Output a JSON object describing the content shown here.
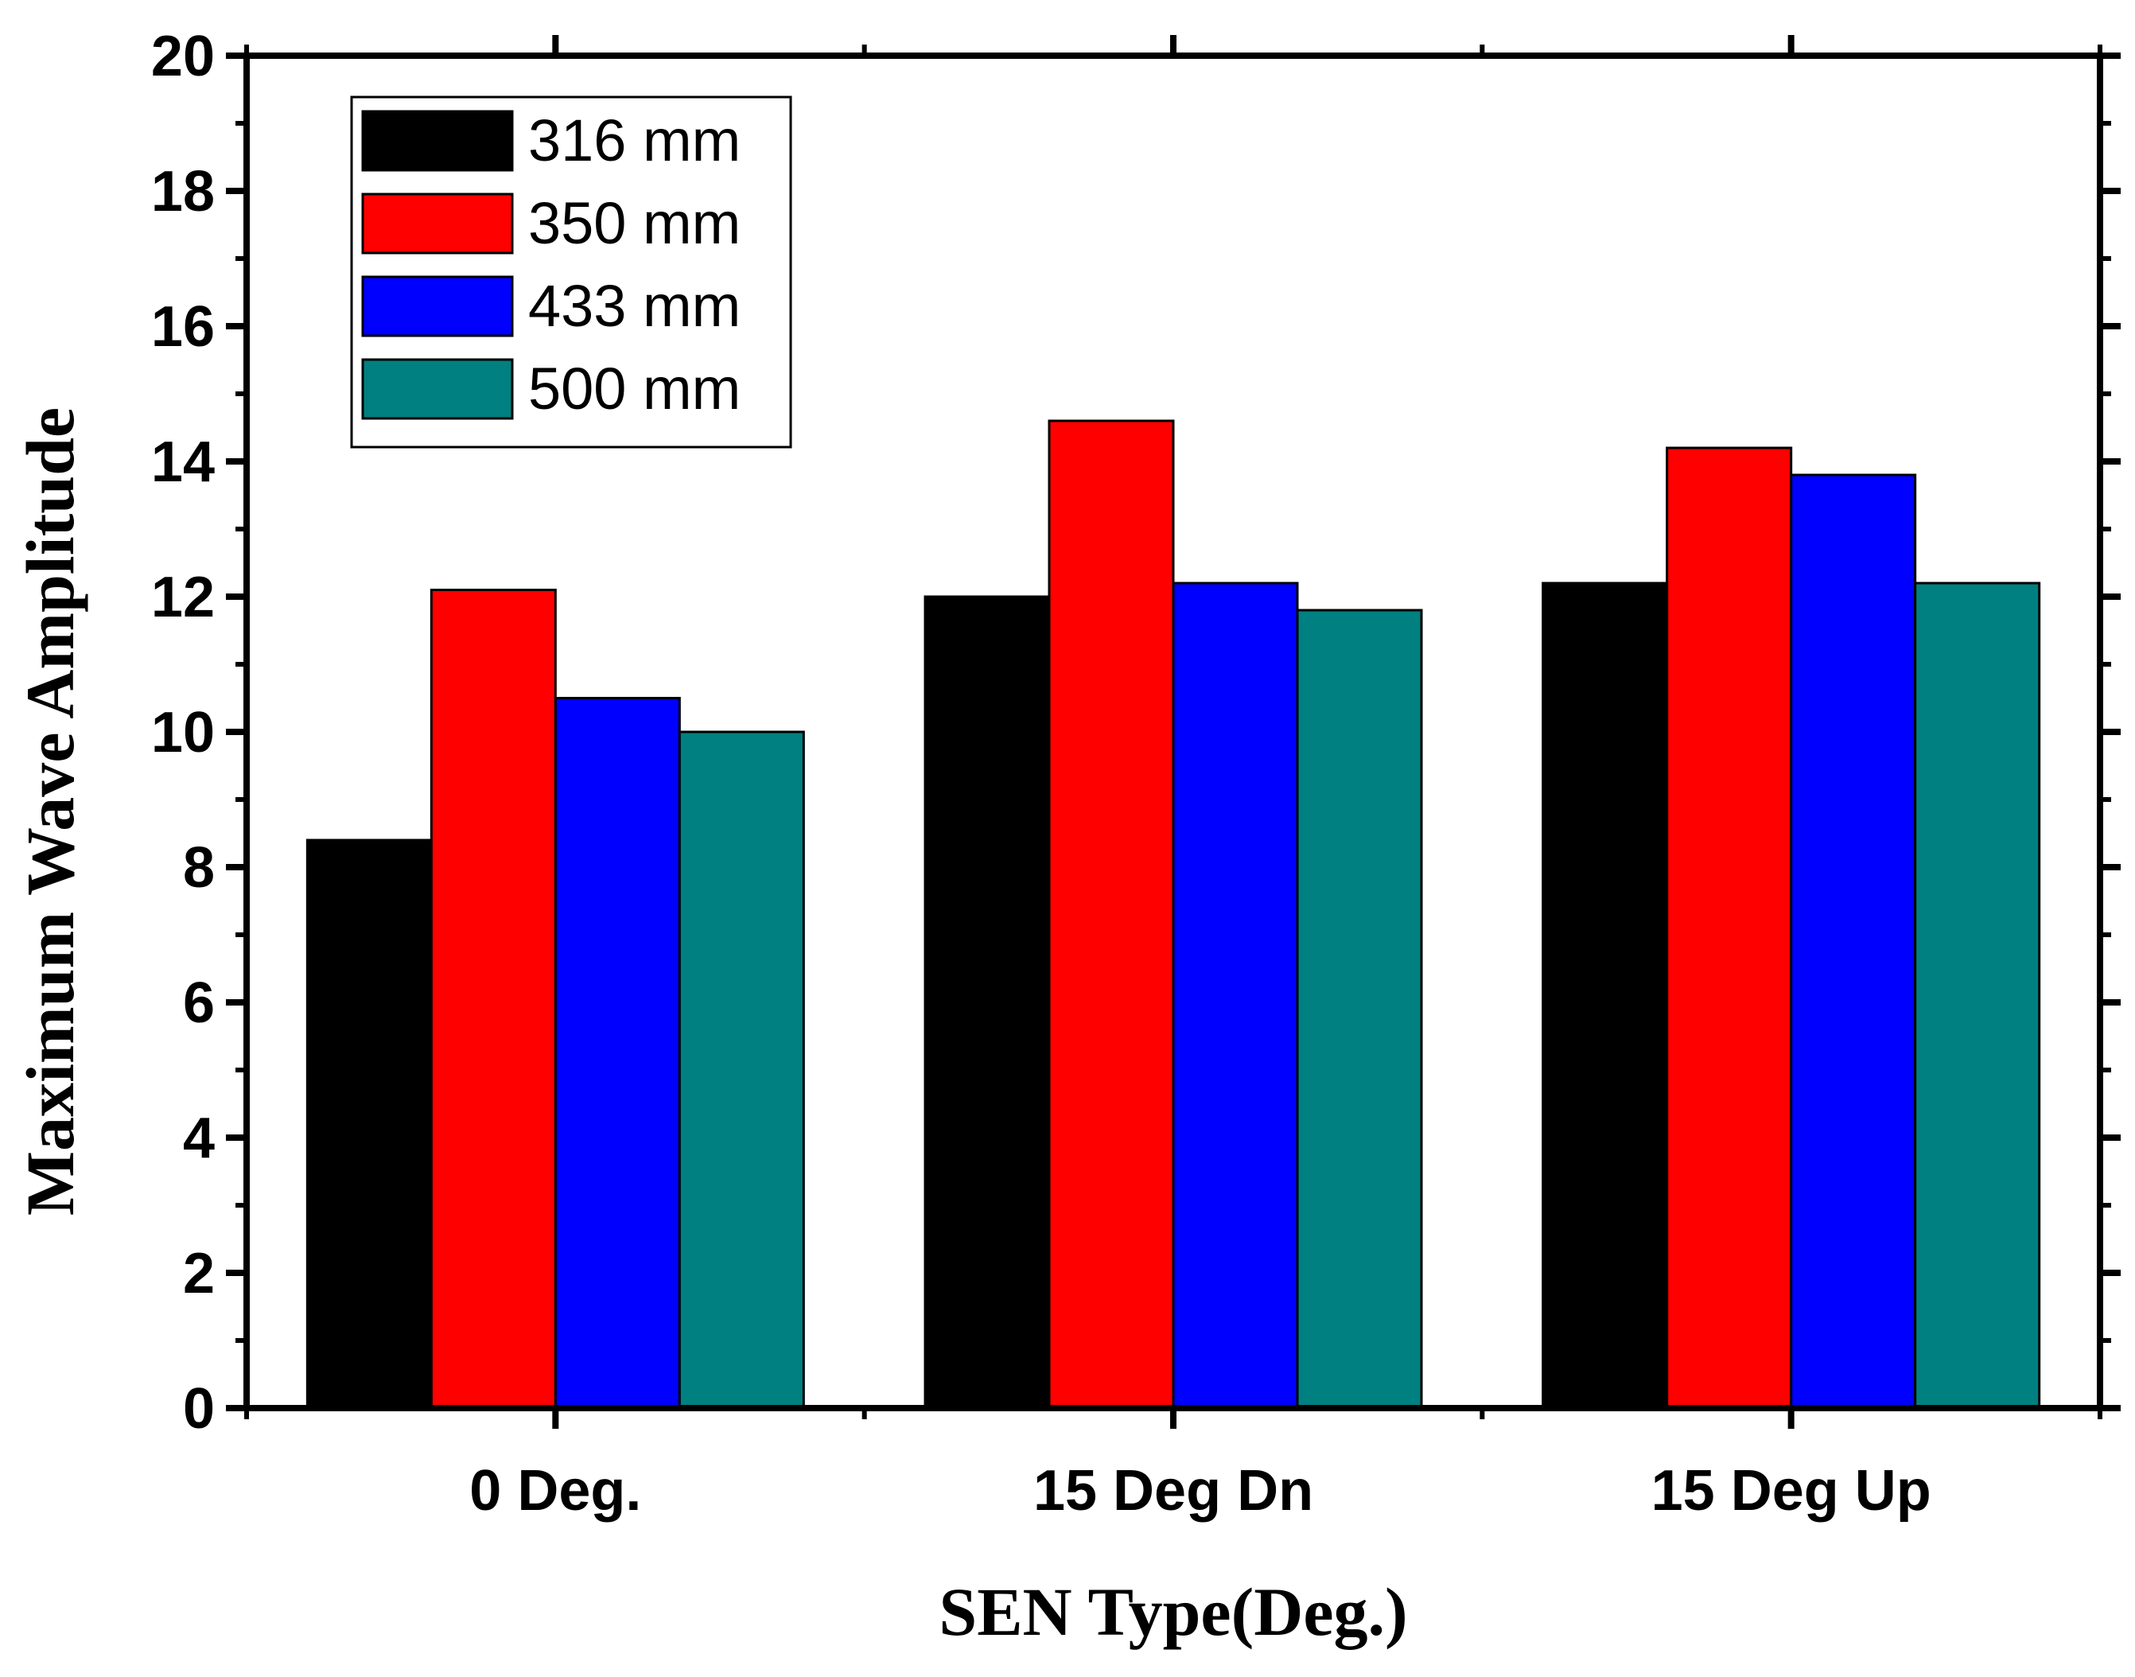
{
  "chart_data": {
    "type": "bar",
    "title": "",
    "xlabel": "SEN Type(Deg.)",
    "ylabel": "Maximum Wave Amplitude",
    "categories": [
      "0 Deg.",
      "15 Deg Dn",
      "15 Deg Up"
    ],
    "series": [
      {
        "name": "316 mm",
        "color": "#000000",
        "values": [
          8.4,
          12.0,
          12.2
        ]
      },
      {
        "name": "350 mm",
        "color": "#ff0000",
        "values": [
          12.1,
          14.6,
          14.2
        ]
      },
      {
        "name": "433 mm",
        "color": "#0000ff",
        "values": [
          10.5,
          12.2,
          13.8
        ]
      },
      {
        "name": "500 mm",
        "color": "#008080",
        "values": [
          10.0,
          11.8,
          12.2
        ]
      }
    ],
    "ylim": [
      0,
      20
    ],
    "yticks": [
      "0",
      "2",
      "4",
      "6",
      "8",
      "10",
      "12",
      "14",
      "16",
      "18",
      "20"
    ],
    "grid": false,
    "legend_position": "top-left"
  }
}
